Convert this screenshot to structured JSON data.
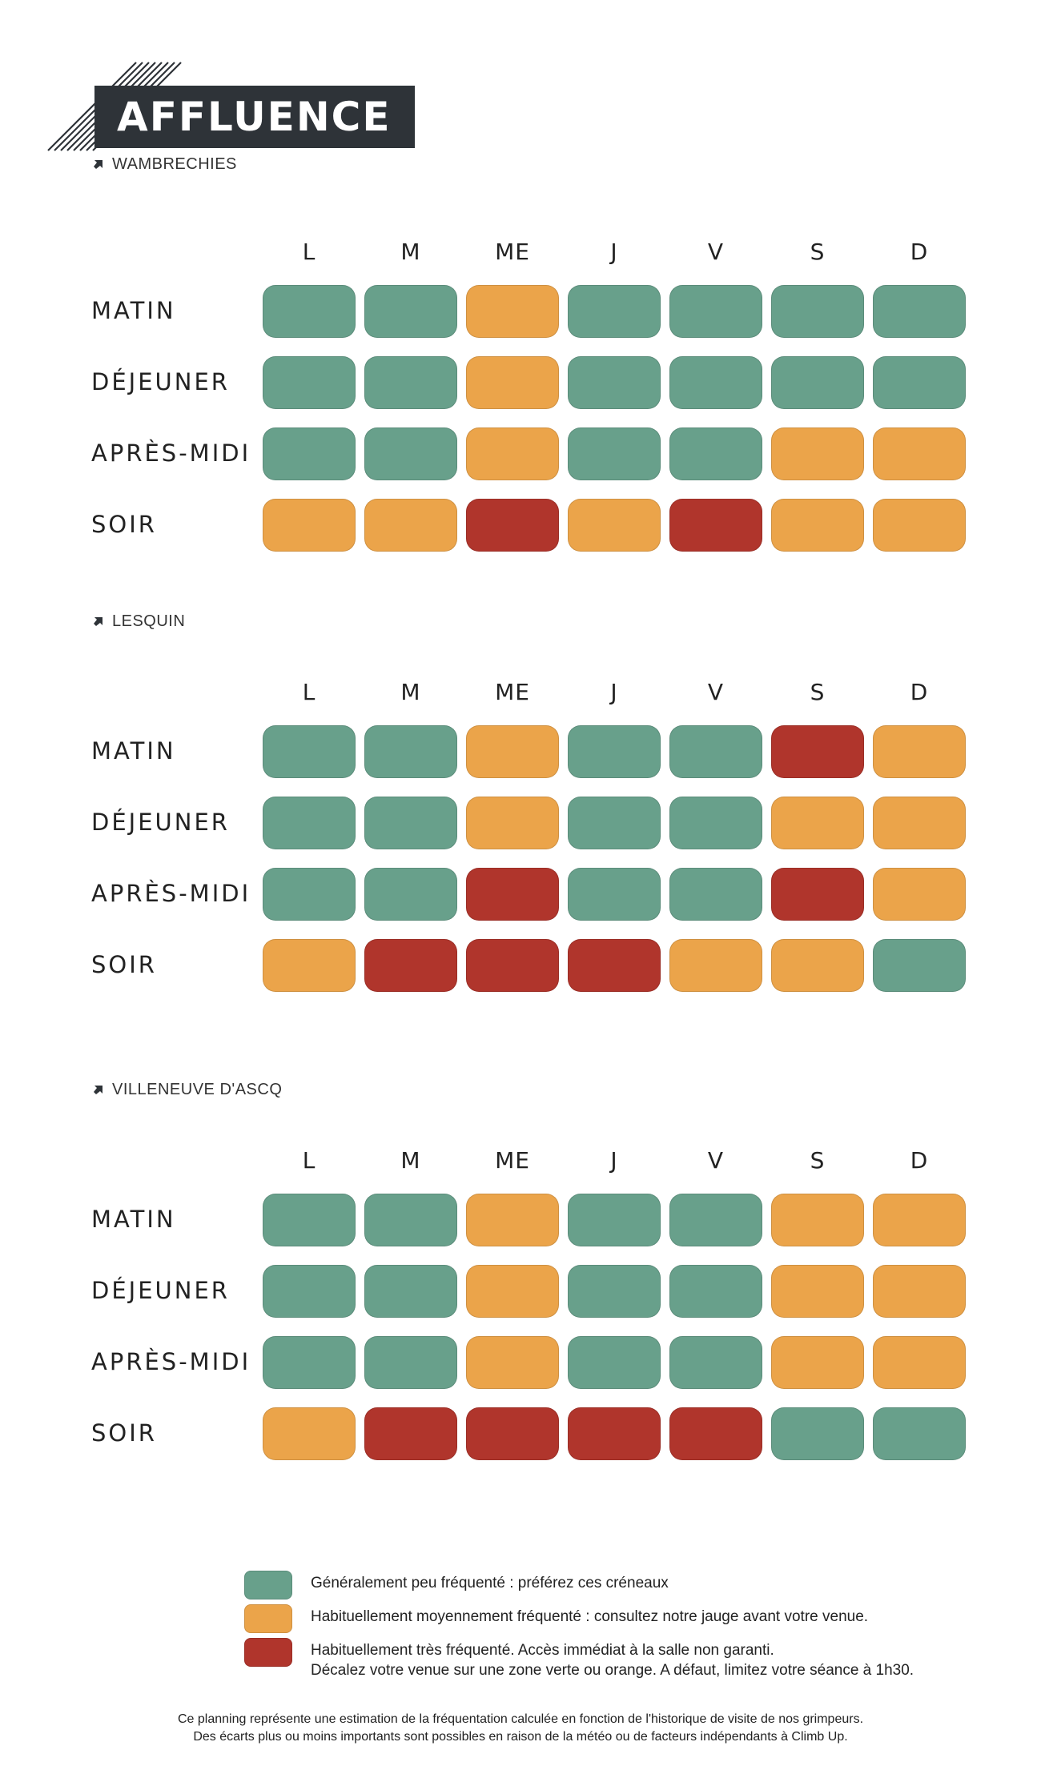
{
  "header": {
    "title": "AFFLUENCE"
  },
  "colors": {
    "low": "#68a08b",
    "medium": "#eba44a",
    "high": "#b0352c"
  },
  "days": [
    "L",
    "M",
    "ME",
    "J",
    "V",
    "S",
    "D"
  ],
  "slots": [
    "MATIN",
    "DÉJEUNER",
    "APRÈS-MIDI",
    "SOIR"
  ],
  "chart_data": [
    {
      "type": "heatmap",
      "location": "WAMBRECHIES",
      "columns": [
        "L",
        "M",
        "ME",
        "J",
        "V",
        "S",
        "D"
      ],
      "rows": [
        "MATIN",
        "DÉJEUNER",
        "APRÈS-MIDI",
        "SOIR"
      ],
      "values": [
        [
          "low",
          "low",
          "medium",
          "low",
          "low",
          "low",
          "low"
        ],
        [
          "low",
          "low",
          "medium",
          "low",
          "low",
          "low",
          "low"
        ],
        [
          "low",
          "low",
          "medium",
          "low",
          "low",
          "medium",
          "medium"
        ],
        [
          "medium",
          "medium",
          "high",
          "medium",
          "high",
          "medium",
          "medium"
        ]
      ]
    },
    {
      "type": "heatmap",
      "location": "LESQUIN",
      "columns": [
        "L",
        "M",
        "ME",
        "J",
        "V",
        "S",
        "D"
      ],
      "rows": [
        "MATIN",
        "DÉJEUNER",
        "APRÈS-MIDI",
        "SOIR"
      ],
      "values": [
        [
          "low",
          "low",
          "medium",
          "low",
          "low",
          "high",
          "medium"
        ],
        [
          "low",
          "low",
          "medium",
          "low",
          "low",
          "medium",
          "medium"
        ],
        [
          "low",
          "low",
          "high",
          "low",
          "low",
          "high",
          "medium"
        ],
        [
          "medium",
          "high",
          "high",
          "high",
          "medium",
          "medium",
          "low"
        ]
      ]
    },
    {
      "type": "heatmap",
      "location": "VILLENEUVE D'ASCQ",
      "columns": [
        "L",
        "M",
        "ME",
        "J",
        "V",
        "S",
        "D"
      ],
      "rows": [
        "MATIN",
        "DÉJEUNER",
        "APRÈS-MIDI",
        "SOIR"
      ],
      "values": [
        [
          "low",
          "low",
          "medium",
          "low",
          "low",
          "medium",
          "medium"
        ],
        [
          "low",
          "low",
          "medium",
          "low",
          "low",
          "medium",
          "medium"
        ],
        [
          "low",
          "low",
          "medium",
          "low",
          "low",
          "medium",
          "medium"
        ],
        [
          "medium",
          "high",
          "high",
          "high",
          "high",
          "low",
          "low"
        ]
      ]
    }
  ],
  "legend": [
    {
      "level": "low",
      "lines": [
        "Généralement peu fréquenté : préférez ces créneaux"
      ]
    },
    {
      "level": "medium",
      "lines": [
        "Habituellement moyennement fréquenté : consultez notre jauge avant votre venue."
      ]
    },
    {
      "level": "high",
      "lines": [
        "Habituellement très fréquenté. Accès immédiat à la salle non garanti.",
        "Décalez votre venue sur une zone verte ou orange. A défaut, limitez votre séance à 1h30."
      ]
    }
  ],
  "footnote": [
    "Ce planning représente une estimation de la fréquentation calculée en fonction de l'historique de visite de nos grimpeurs.",
    "Des écarts plus ou moins importants sont possibles en raison de la météo ou de facteurs indépendants à Climb Up."
  ]
}
